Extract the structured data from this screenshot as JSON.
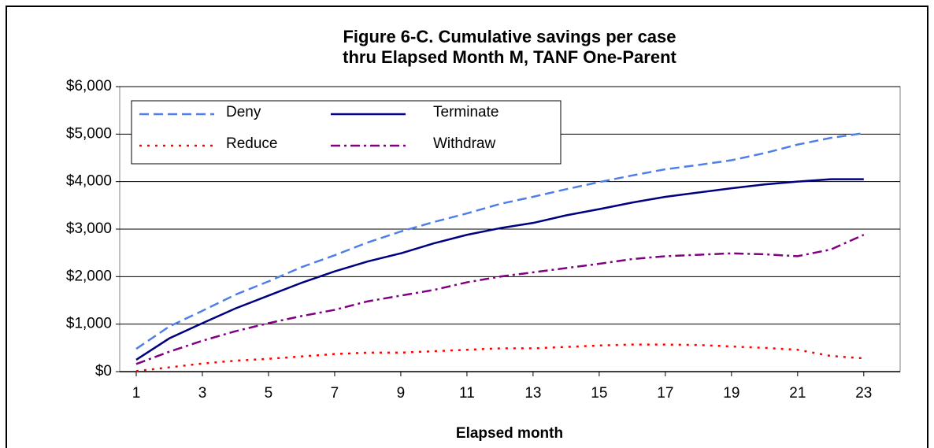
{
  "chart_data": {
    "type": "line",
    "title": [
      "Figure 6-C. Cumulative savings per case",
      "thru Elapsed Month M, TANF One-Parent"
    ],
    "x_label": "Elapsed month",
    "x": [
      1,
      2,
      3,
      4,
      5,
      6,
      7,
      8,
      9,
      10,
      11,
      12,
      13,
      14,
      15,
      16,
      17,
      18,
      19,
      20,
      21,
      22,
      23
    ],
    "xlim": [
      0.5,
      24.1
    ],
    "xticks": [
      1,
      3,
      5,
      7,
      9,
      11,
      13,
      15,
      17,
      19,
      21,
      23
    ],
    "ylim": [
      0,
      6000
    ],
    "yticks": [
      {
        "value": 0,
        "label": "$0"
      },
      {
        "value": 1000,
        "label": "$1,000"
      },
      {
        "value": 2000,
        "label": "$2,000"
      },
      {
        "value": 3000,
        "label": "$3,000"
      },
      {
        "value": 4000,
        "label": "$4,000"
      },
      {
        "value": 5000,
        "label": "$5,000"
      },
      {
        "value": 6000,
        "label": "$6,000"
      }
    ],
    "grid": true,
    "legend": "upper left",
    "series": [
      {
        "name": "Deny",
        "color": "#4f7fe6",
        "dash": "dashed",
        "values": [
          480,
          950,
          1280,
          1620,
          1900,
          2200,
          2450,
          2720,
          2950,
          3150,
          3330,
          3530,
          3680,
          3840,
          3990,
          4130,
          4260,
          4350,
          4450,
          4600,
          4780,
          4920,
          5020
        ]
      },
      {
        "name": "Terminate",
        "color": "#000080",
        "dash": "solid",
        "values": [
          250,
          700,
          1020,
          1330,
          1600,
          1870,
          2110,
          2320,
          2490,
          2700,
          2880,
          3020,
          3130,
          3290,
          3420,
          3560,
          3680,
          3770,
          3860,
          3940,
          4000,
          4050,
          4050
        ]
      },
      {
        "name": "Reduce",
        "color": "#ff0000",
        "dash": "dotted",
        "values": [
          10,
          90,
          170,
          230,
          270,
          320,
          370,
          400,
          400,
          430,
          460,
          490,
          490,
          520,
          550,
          570,
          570,
          560,
          530,
          500,
          460,
          330,
          280
        ]
      },
      {
        "name": "Withdraw",
        "color": "#800080",
        "dash": "dashdot",
        "values": [
          160,
          420,
          650,
          850,
          1020,
          1170,
          1300,
          1480,
          1600,
          1720,
          1880,
          2000,
          2090,
          2180,
          2270,
          2370,
          2430,
          2460,
          2490,
          2470,
          2430,
          2570,
          2880
        ]
      }
    ]
  }
}
